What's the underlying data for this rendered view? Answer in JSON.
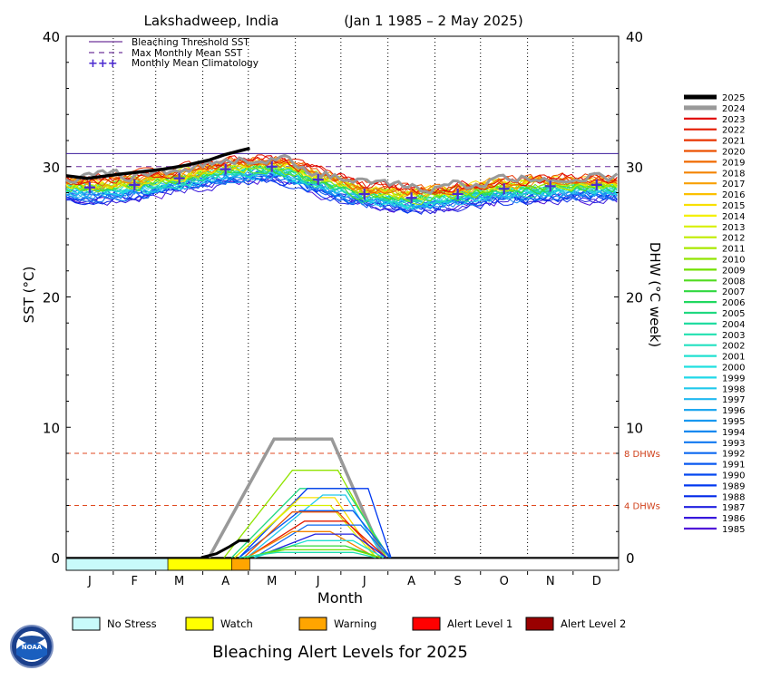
{
  "chart_data": {
    "type": "line",
    "title_location": "Lakshadweep, India",
    "title_range": "(Jan 1 1985 – 2 May 2025)",
    "ylabel_left": "SST (°C)",
    "ylabel_right": "DHW (°C week)",
    "xlabel": "Month",
    "ylim": [
      0,
      40
    ],
    "yticks": [
      0,
      10,
      20,
      30,
      40
    ],
    "months": [
      "J",
      "F",
      "M",
      "A",
      "M",
      "J",
      "J",
      "A",
      "S",
      "O",
      "N",
      "D"
    ],
    "top_legend": [
      {
        "label": "Bleaching Threshold SST",
        "style": "solid"
      },
      {
        "label": "Max Monthly Mean SST",
        "style": "dashed"
      },
      {
        "label": "Monthly Mean Climatology",
        "style": "cross"
      }
    ],
    "thresholds": {
      "bleaching": 31.0,
      "mmm": 30.0
    },
    "dhw_refs": [
      {
        "value": 8,
        "label": "8 DHWs"
      },
      {
        "value": 4,
        "label": "4 DHWs"
      }
    ],
    "climatology": [
      28.4,
      28.6,
      29.1,
      29.8,
      30.0,
      29.0,
      27.9,
      27.6,
      27.9,
      28.3,
      28.5,
      28.6
    ],
    "years": [
      "2025",
      "2024",
      "2023",
      "2022",
      "2021",
      "2020",
      "2019",
      "2018",
      "2017",
      "2016",
      "2015",
      "2014",
      "2013",
      "2012",
      "2011",
      "2010",
      "2009",
      "2008",
      "2007",
      "2006",
      "2005",
      "2004",
      "2003",
      "2002",
      "2001",
      "2000",
      "1999",
      "1998",
      "1997",
      "1996",
      "1995",
      "1994",
      "1993",
      "1992",
      "1991",
      "1990",
      "1989",
      "1988",
      "1987",
      "1986",
      "1985"
    ],
    "year_colors": [
      "#000000",
      "#999999",
      "#e00000",
      "#e41a00",
      "#e83400",
      "#ec5000",
      "#f06a00",
      "#f48400",
      "#f8a000",
      "#fcc000",
      "#f8e000",
      "#f4f000",
      "#d8f000",
      "#c0ec00",
      "#a8e800",
      "#90e400",
      "#70e000",
      "#50dc20",
      "#30d840",
      "#20d860",
      "#20d880",
      "#20dca0",
      "#20e0b0",
      "#20e0c0",
      "#20e0d0",
      "#20e0e0",
      "#20d8e8",
      "#20c8ec",
      "#20b8f0",
      "#20a8f0",
      "#1898f0",
      "#1488f0",
      "#1078f0",
      "#0c68f0",
      "#0858f0",
      "#0448f0",
      "#0038f0",
      "#0028e8",
      "#2020e0",
      "#3818dc",
      "#5010d8"
    ],
    "year_2025_sst": [
      [
        1,
        29.3
      ],
      [
        15,
        29.1
      ],
      [
        35,
        29.4
      ],
      [
        50,
        29.6
      ],
      [
        65,
        29.8
      ],
      [
        80,
        30.1
      ],
      [
        95,
        30.5
      ],
      [
        105,
        30.9
      ],
      [
        115,
        31.2
      ],
      [
        122,
        31.4
      ]
    ],
    "year_2025_dhw": [
      [
        90,
        0
      ],
      [
        100,
        0.3
      ],
      [
        108,
        0.8
      ],
      [
        115,
        1.3
      ],
      [
        122,
        1.3
      ]
    ],
    "peak_dhw_2024": 9.1,
    "alert_levels": [
      {
        "label": "No Stress",
        "color": "#c8fafa"
      },
      {
        "label": "Watch",
        "color": "#ffff00"
      },
      {
        "label": "Warning",
        "color": "#ffa500"
      },
      {
        "label": "Alert Level 1",
        "color": "#ff0000"
      },
      {
        "label": "Alert Level 2",
        "color": "#990000"
      }
    ],
    "alert_bar_2025": [
      {
        "level": 0,
        "start_day": 1,
        "end_day": 68
      },
      {
        "level": 1,
        "start_day": 68,
        "end_day": 110
      },
      {
        "level": 2,
        "start_day": 110,
        "end_day": 122
      }
    ]
  },
  "footer_title": "Bleaching Alert Levels for 2025",
  "logo_text": "NOAA"
}
